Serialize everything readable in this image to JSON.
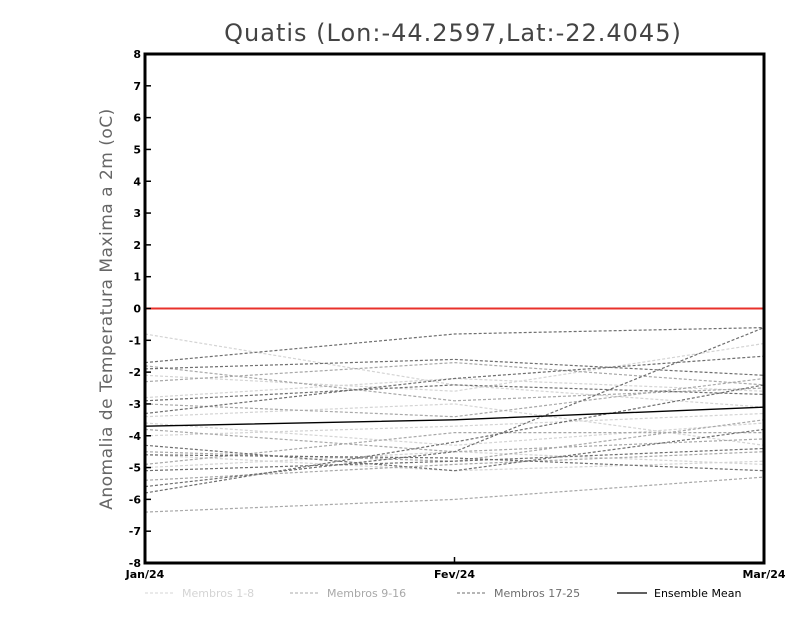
{
  "chart_data": {
    "type": "line",
    "title": "Quatis (Lon:-44.2597,Lat:-22.4045)",
    "xlabel": "",
    "ylabel": "Anomalia de Temperatura Maxima a 2m (oC)",
    "categories": [
      "Jan/24",
      "Fev/24",
      "Mar/24"
    ],
    "ylim": [
      -8,
      8
    ],
    "yticks": [
      8,
      7,
      6,
      5,
      4,
      3,
      2,
      1,
      0,
      -1,
      -2,
      -3,
      -4,
      -5,
      -6,
      -7,
      -8
    ],
    "yticklabels": [
      "8",
      "7",
      "6",
      "5",
      "4",
      "3",
      "2",
      "1",
      "0",
      "-1",
      "-2",
      "-3",
      "-4",
      "-5",
      "-6",
      "-7",
      "-8"
    ],
    "reference_line": {
      "y": 0,
      "color": "#e8312b"
    },
    "grid": false,
    "legend_placement": "bottom",
    "legend": [
      {
        "label": "Membros 1-8",
        "color": "#d4d4d4",
        "dashed": true
      },
      {
        "label": "Membros 9-16",
        "color": "#a8a8a8",
        "dashed": true
      },
      {
        "label": "Membros 17-25",
        "color": "#6e6e6e",
        "dashed": true
      },
      {
        "label": "Ensemble Mean",
        "color": "#000000",
        "dashed": false
      }
    ],
    "series": [
      {
        "group": "Membros 1-8",
        "color": "#d4d4d4",
        "dashed": true,
        "values": [
          -0.8,
          -2.4,
          -3.1
        ]
      },
      {
        "group": "Membros 1-8",
        "color": "#d4d4d4",
        "dashed": true,
        "values": [
          -2.1,
          -2.6,
          -1.1
        ]
      },
      {
        "group": "Membros 1-8",
        "color": "#d4d4d4",
        "dashed": true,
        "values": [
          -3.6,
          -4.3,
          -3.6
        ]
      },
      {
        "group": "Membros 1-8",
        "color": "#d4d4d4",
        "dashed": true,
        "values": [
          -4.0,
          -3.7,
          -3.3
        ]
      },
      {
        "group": "Membros 1-8",
        "color": "#d4d4d4",
        "dashed": true,
        "values": [
          -4.6,
          -5.1,
          -4.8
        ]
      },
      {
        "group": "Membros 1-8",
        "color": "#d4d4d4",
        "dashed": true,
        "values": [
          -5.0,
          -4.5,
          -4.9
        ]
      },
      {
        "group": "Membros 1-8",
        "color": "#d4d4d4",
        "dashed": true,
        "values": [
          -2.8,
          -2.2,
          -2.6
        ]
      },
      {
        "group": "Membros 1-8",
        "color": "#d4d4d4",
        "dashed": true,
        "values": [
          -3.4,
          -3.0,
          -4.3
        ]
      },
      {
        "group": "Membros 9-16",
        "color": "#a8a8a8",
        "dashed": true,
        "values": [
          -1.8,
          -2.9,
          -2.5
        ]
      },
      {
        "group": "Membros 9-16",
        "color": "#a8a8a8",
        "dashed": true,
        "values": [
          -6.4,
          -6.0,
          -5.3
        ]
      },
      {
        "group": "Membros 9-16",
        "color": "#a8a8a8",
        "dashed": true,
        "values": [
          -4.5,
          -4.8,
          -3.5
        ]
      },
      {
        "group": "Membros 9-16",
        "color": "#a8a8a8",
        "dashed": true,
        "values": [
          -5.4,
          -4.9,
          -4.5
        ]
      },
      {
        "group": "Membros 9-16",
        "color": "#a8a8a8",
        "dashed": true,
        "values": [
          -2.3,
          -1.7,
          -2.4
        ]
      },
      {
        "group": "Membros 9-16",
        "color": "#a8a8a8",
        "dashed": true,
        "values": [
          -3.0,
          -3.4,
          -2.2
        ]
      },
      {
        "group": "Membros 9-16",
        "color": "#a8a8a8",
        "dashed": true,
        "values": [
          -4.9,
          -3.9,
          -3.9
        ]
      },
      {
        "group": "Membros 9-16",
        "color": "#a8a8a8",
        "dashed": true,
        "values": [
          -3.8,
          -4.5,
          -4.1
        ]
      },
      {
        "group": "Membros 17-25",
        "color": "#6e6e6e",
        "dashed": true,
        "values": [
          -1.7,
          -0.8,
          -0.6
        ]
      },
      {
        "group": "Membros 17-25",
        "color": "#6e6e6e",
        "dashed": true,
        "values": [
          -3.3,
          -2.2,
          -1.5
        ]
      },
      {
        "group": "Membros 17-25",
        "color": "#6e6e6e",
        "dashed": true,
        "values": [
          -5.8,
          -4.2,
          -2.4
        ]
      },
      {
        "group": "Membros 17-25",
        "color": "#6e6e6e",
        "dashed": true,
        "values": [
          -4.3,
          -5.1,
          -3.8
        ]
      },
      {
        "group": "Membros 17-25",
        "color": "#6e6e6e",
        "dashed": true,
        "values": [
          -5.1,
          -4.8,
          -4.4
        ]
      },
      {
        "group": "Membros 17-25",
        "color": "#6e6e6e",
        "dashed": true,
        "values": [
          -1.9,
          -1.6,
          -2.1
        ]
      },
      {
        "group": "Membros 17-25",
        "color": "#6e6e6e",
        "dashed": true,
        "values": [
          -4.6,
          -4.7,
          -5.1
        ]
      },
      {
        "group": "Membros 17-25",
        "color": "#6e6e6e",
        "dashed": true,
        "values": [
          -2.9,
          -2.4,
          -2.7
        ]
      },
      {
        "group": "Membros 17-25",
        "color": "#6e6e6e",
        "dashed": true,
        "values": [
          -5.6,
          -4.5,
          -0.6
        ]
      },
      {
        "group": "Ensemble Mean",
        "color": "#000000",
        "dashed": false,
        "values": [
          -3.7,
          -3.5,
          -3.1
        ]
      }
    ]
  }
}
